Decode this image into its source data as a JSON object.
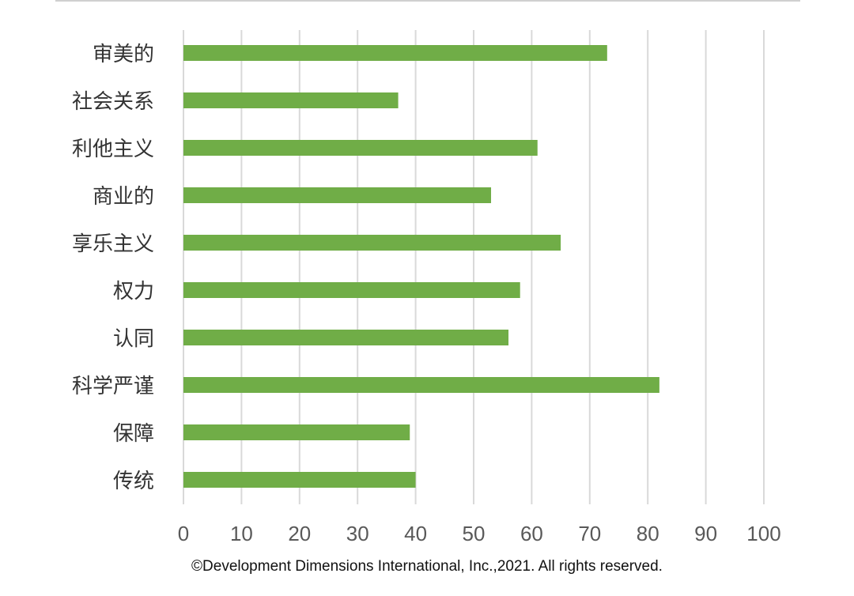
{
  "chart_data": {
    "type": "bar",
    "orientation": "horizontal",
    "categories": [
      "审美的",
      "社会关系",
      "利他主义",
      "商业的",
      "享乐主义",
      "权力",
      "认同",
      "科学严谨",
      "保障",
      "传统"
    ],
    "values": [
      73,
      37,
      61,
      53,
      65,
      58,
      56,
      82,
      39,
      40
    ],
    "xlim": [
      0,
      100
    ],
    "xticks": [
      0,
      10,
      20,
      30,
      40,
      50,
      60,
      70,
      80,
      90,
      100
    ],
    "grid": "vertical",
    "legend": "none",
    "bar_color": "#70AD47",
    "grid_color": "#D9D9D9",
    "title": "",
    "xlabel": "",
    "ylabel": ""
  },
  "footer": {
    "copyright": "©Development Dimensions International, Inc.,2021. All rights reserved."
  }
}
